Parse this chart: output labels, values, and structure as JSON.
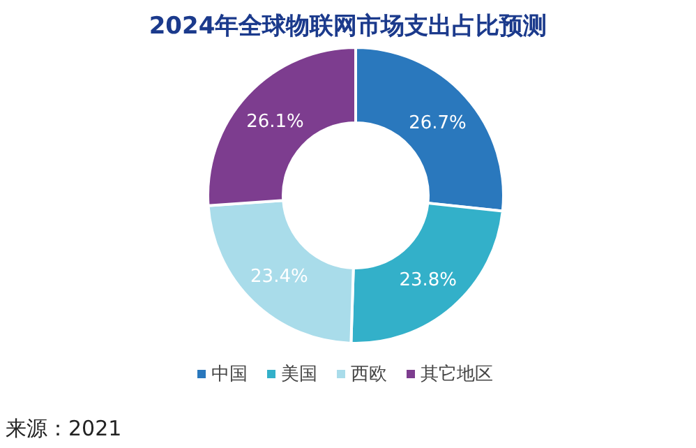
{
  "chart_data": {
    "type": "donut",
    "title": "2024年全球物联网市场支出占比预测",
    "categories": [
      "中国",
      "美国",
      "西欧",
      "其它地区"
    ],
    "values": [
      26.7,
      23.8,
      23.4,
      26.1
    ],
    "colors": [
      "#2a78bd",
      "#33b0c9",
      "#a9dcea",
      "#7d3d8f"
    ],
    "value_labels": [
      "26.7%",
      "23.8%",
      "23.4%",
      "26.1%"
    ],
    "legend": "bottom",
    "annotations": [
      "来源：2021"
    ]
  }
}
